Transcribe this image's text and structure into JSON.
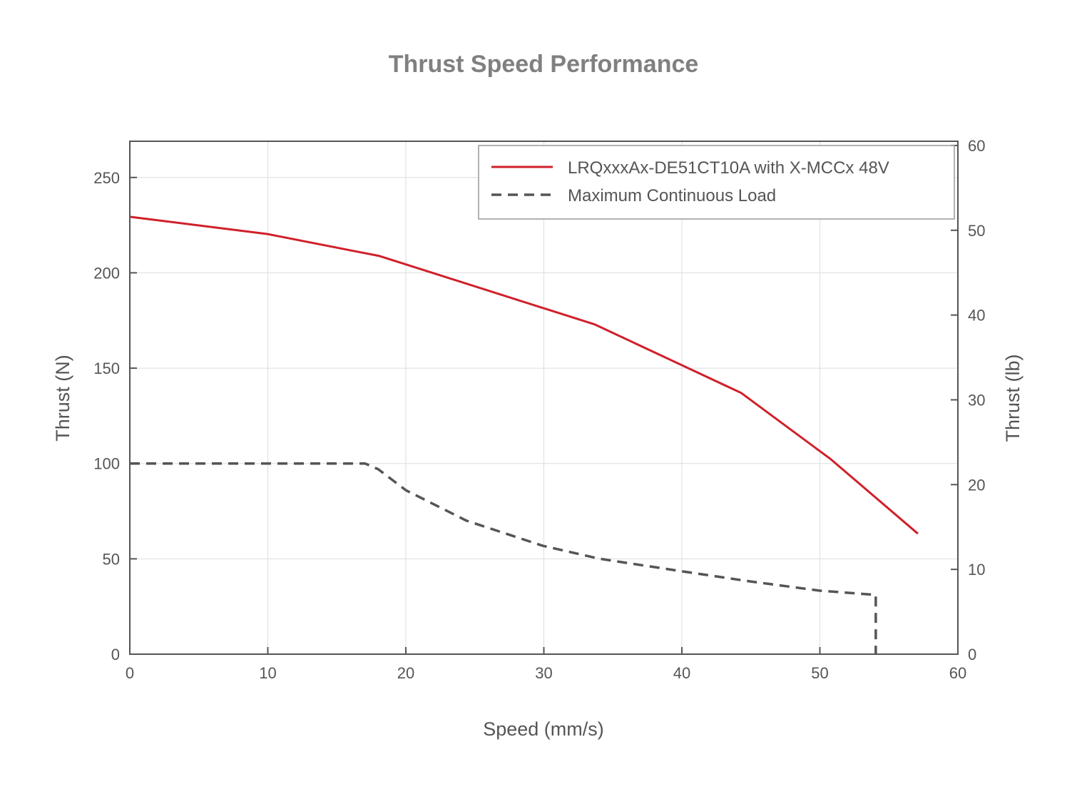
{
  "chart_data": {
    "type": "line",
    "title": "Thrust Speed Performance",
    "xlabel": "Speed (mm/s)",
    "ylabel": "Thrust (N)",
    "y2label": "Thrust (lb)",
    "xlim": [
      0,
      60
    ],
    "ylim": [
      0,
      269
    ],
    "y2lim": [
      0,
      60.5
    ],
    "xticks": [
      "0",
      "10",
      "20",
      "30",
      "40",
      "50",
      "60"
    ],
    "yticks": [
      "0",
      "50",
      "100",
      "150",
      "200",
      "250"
    ],
    "y2ticks": [
      "0",
      "10",
      "20",
      "30",
      "40",
      "50",
      "60"
    ],
    "grid": true,
    "legend_position": "top-right",
    "series": [
      {
        "name": "LRQxxxAx-DE51CT10A with X-MCCx 48V",
        "color": "#d0202a",
        "style": "solid",
        "x": [
          0,
          10,
          18.1,
          33.7,
          44.3,
          50.8,
          57.1
        ],
        "y": [
          229.4,
          220.3,
          208.8,
          172.9,
          137,
          102.2,
          63.2
        ]
      },
      {
        "name": "Maximum Continuous Load",
        "color": "#555555",
        "style": "dashed",
        "x": [
          0,
          17.05,
          18,
          20,
          24.4,
          29.9,
          34,
          39.7,
          44.9,
          50,
          54.05,
          54.05
        ],
        "y": [
          100,
          100,
          97,
          86,
          70,
          56.9,
          50.1,
          43.8,
          38.2,
          33.3,
          31.1,
          0
        ]
      }
    ]
  }
}
